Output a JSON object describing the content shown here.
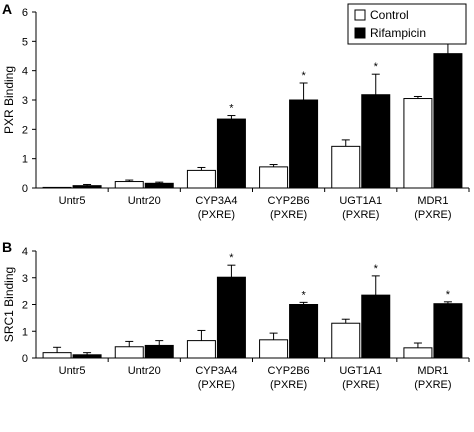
{
  "legend": {
    "items": [
      {
        "label": "Control",
        "color": "#ffffff"
      },
      {
        "label": "Rifampicin",
        "color": "#000000"
      }
    ]
  },
  "chart_data": [
    {
      "type": "bar",
      "panel_label": "A",
      "title": "",
      "xlabel": "",
      "ylabel": "PXR Binding",
      "ylim": [
        0,
        6
      ],
      "yticks": [
        "0",
        "1",
        "2",
        "3",
        "4",
        "5",
        "6"
      ],
      "categories": [
        [
          "Untr5"
        ],
        [
          "Untr20"
        ],
        [
          "CYP3A4",
          "(PXRE)"
        ],
        [
          "CYP2B6",
          "(PXRE)"
        ],
        [
          "UGT1A1",
          "(PXRE)"
        ],
        [
          "MDR1",
          "(PXRE)"
        ]
      ],
      "series": [
        {
          "name": "Control",
          "color": "#ffffff",
          "values": [
            0.02,
            0.22,
            0.6,
            0.72,
            1.42,
            3.05
          ],
          "errors": [
            0.0,
            0.05,
            0.1,
            0.08,
            0.22,
            0.07
          ]
        },
        {
          "name": "Rifampicin",
          "color": "#000000",
          "values": [
            0.08,
            0.16,
            2.35,
            3.0,
            3.18,
            4.58
          ],
          "errors": [
            0.04,
            0.04,
            0.12,
            0.58,
            0.7,
            0.35
          ]
        }
      ],
      "significance": [
        "",
        "",
        "*",
        "*",
        "*",
        "*"
      ],
      "legend_position": "top-right",
      "grid": false
    },
    {
      "type": "bar",
      "panel_label": "B",
      "title": "",
      "xlabel": "",
      "ylabel": "SRC1 Binding",
      "ylim": [
        0,
        4
      ],
      "yticks": [
        "0",
        "1",
        "2",
        "3",
        "4"
      ],
      "categories": [
        [
          "Untr5"
        ],
        [
          "Untr20"
        ],
        [
          "CYP3A4",
          "(PXRE)"
        ],
        [
          "CYP2B6",
          "(PXRE)"
        ],
        [
          "UGT1A1",
          "(PXRE)"
        ],
        [
          "MDR1",
          "(PXRE)"
        ]
      ],
      "series": [
        {
          "name": "Control",
          "color": "#ffffff",
          "values": [
            0.2,
            0.42,
            0.65,
            0.68,
            1.3,
            0.38
          ],
          "errors": [
            0.2,
            0.2,
            0.38,
            0.25,
            0.15,
            0.18
          ]
        },
        {
          "name": "Rifampicin",
          "color": "#000000",
          "values": [
            0.12,
            0.47,
            3.02,
            2.0,
            2.35,
            2.03
          ],
          "errors": [
            0.08,
            0.18,
            0.45,
            0.08,
            0.72,
            0.07
          ]
        }
      ],
      "significance": [
        "",
        "",
        "*",
        "*",
        "*",
        "*"
      ],
      "grid": false
    }
  ]
}
